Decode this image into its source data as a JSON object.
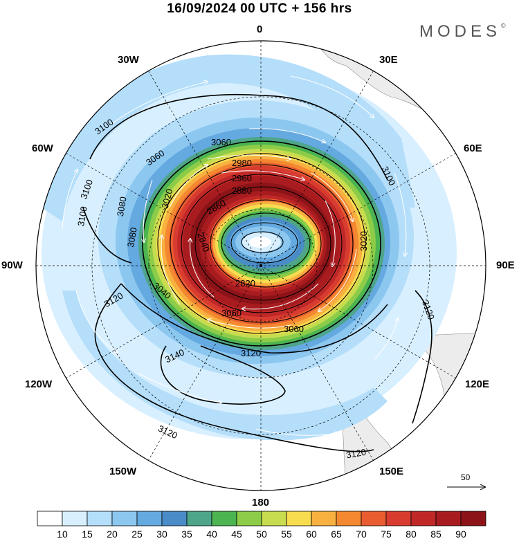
{
  "title": "16/09/2024  00 UTC  + 156 hrs",
  "logo": "MODES",
  "logo_mark": "©",
  "lon_labels": {
    "n0": "0",
    "n30w": "30W",
    "n30e": "30E",
    "n60w": "60W",
    "n60e": "60E",
    "w90": "90W",
    "e90": "90E",
    "s120w": "120W",
    "s120e": "120E",
    "s150w": "150W",
    "s150e": "150E",
    "s180": "180"
  },
  "vector_reference": "50",
  "colorbar": {
    "labels": [
      "10",
      "15",
      "20",
      "25",
      "30",
      "35",
      "40",
      "45",
      "50",
      "55",
      "60",
      "65",
      "70",
      "75",
      "80",
      "85",
      "90"
    ],
    "colors": [
      "#ffffff",
      "#d8efff",
      "#b4defa",
      "#8cc7f0",
      "#64a9e0",
      "#4a8cc8",
      "#4ea58a",
      "#4cb450",
      "#8ccc48",
      "#c8dc50",
      "#f8dc50",
      "#f8b040",
      "#f48830",
      "#e85c30",
      "#d83c30",
      "#c02828",
      "#a81c20",
      "#8c1418"
    ]
  },
  "contours": {
    "c3100a": "3100",
    "c3100b": "3100",
    "c3100c": "3100",
    "c3100d": "3100",
    "c3080a": "3080",
    "c3080b": "3080",
    "c3060a": "3060",
    "c3060b": "3060",
    "c3060c": "3060",
    "c3060d": "3060",
    "c3040": "3040",
    "c3020a": "3020",
    "c3020b": "3020",
    "c3000": "3000",
    "c2980": "2980",
    "c2960": "2960",
    "c2880": "2880",
    "c2860": "2860",
    "c2840": "2840",
    "c2820": "2820",
    "c3120a": "3120",
    "c3120b": "3120",
    "c3120c": "3120",
    "c3120d": "3120",
    "c3120e": "3120",
    "c3140": "3140"
  }
}
